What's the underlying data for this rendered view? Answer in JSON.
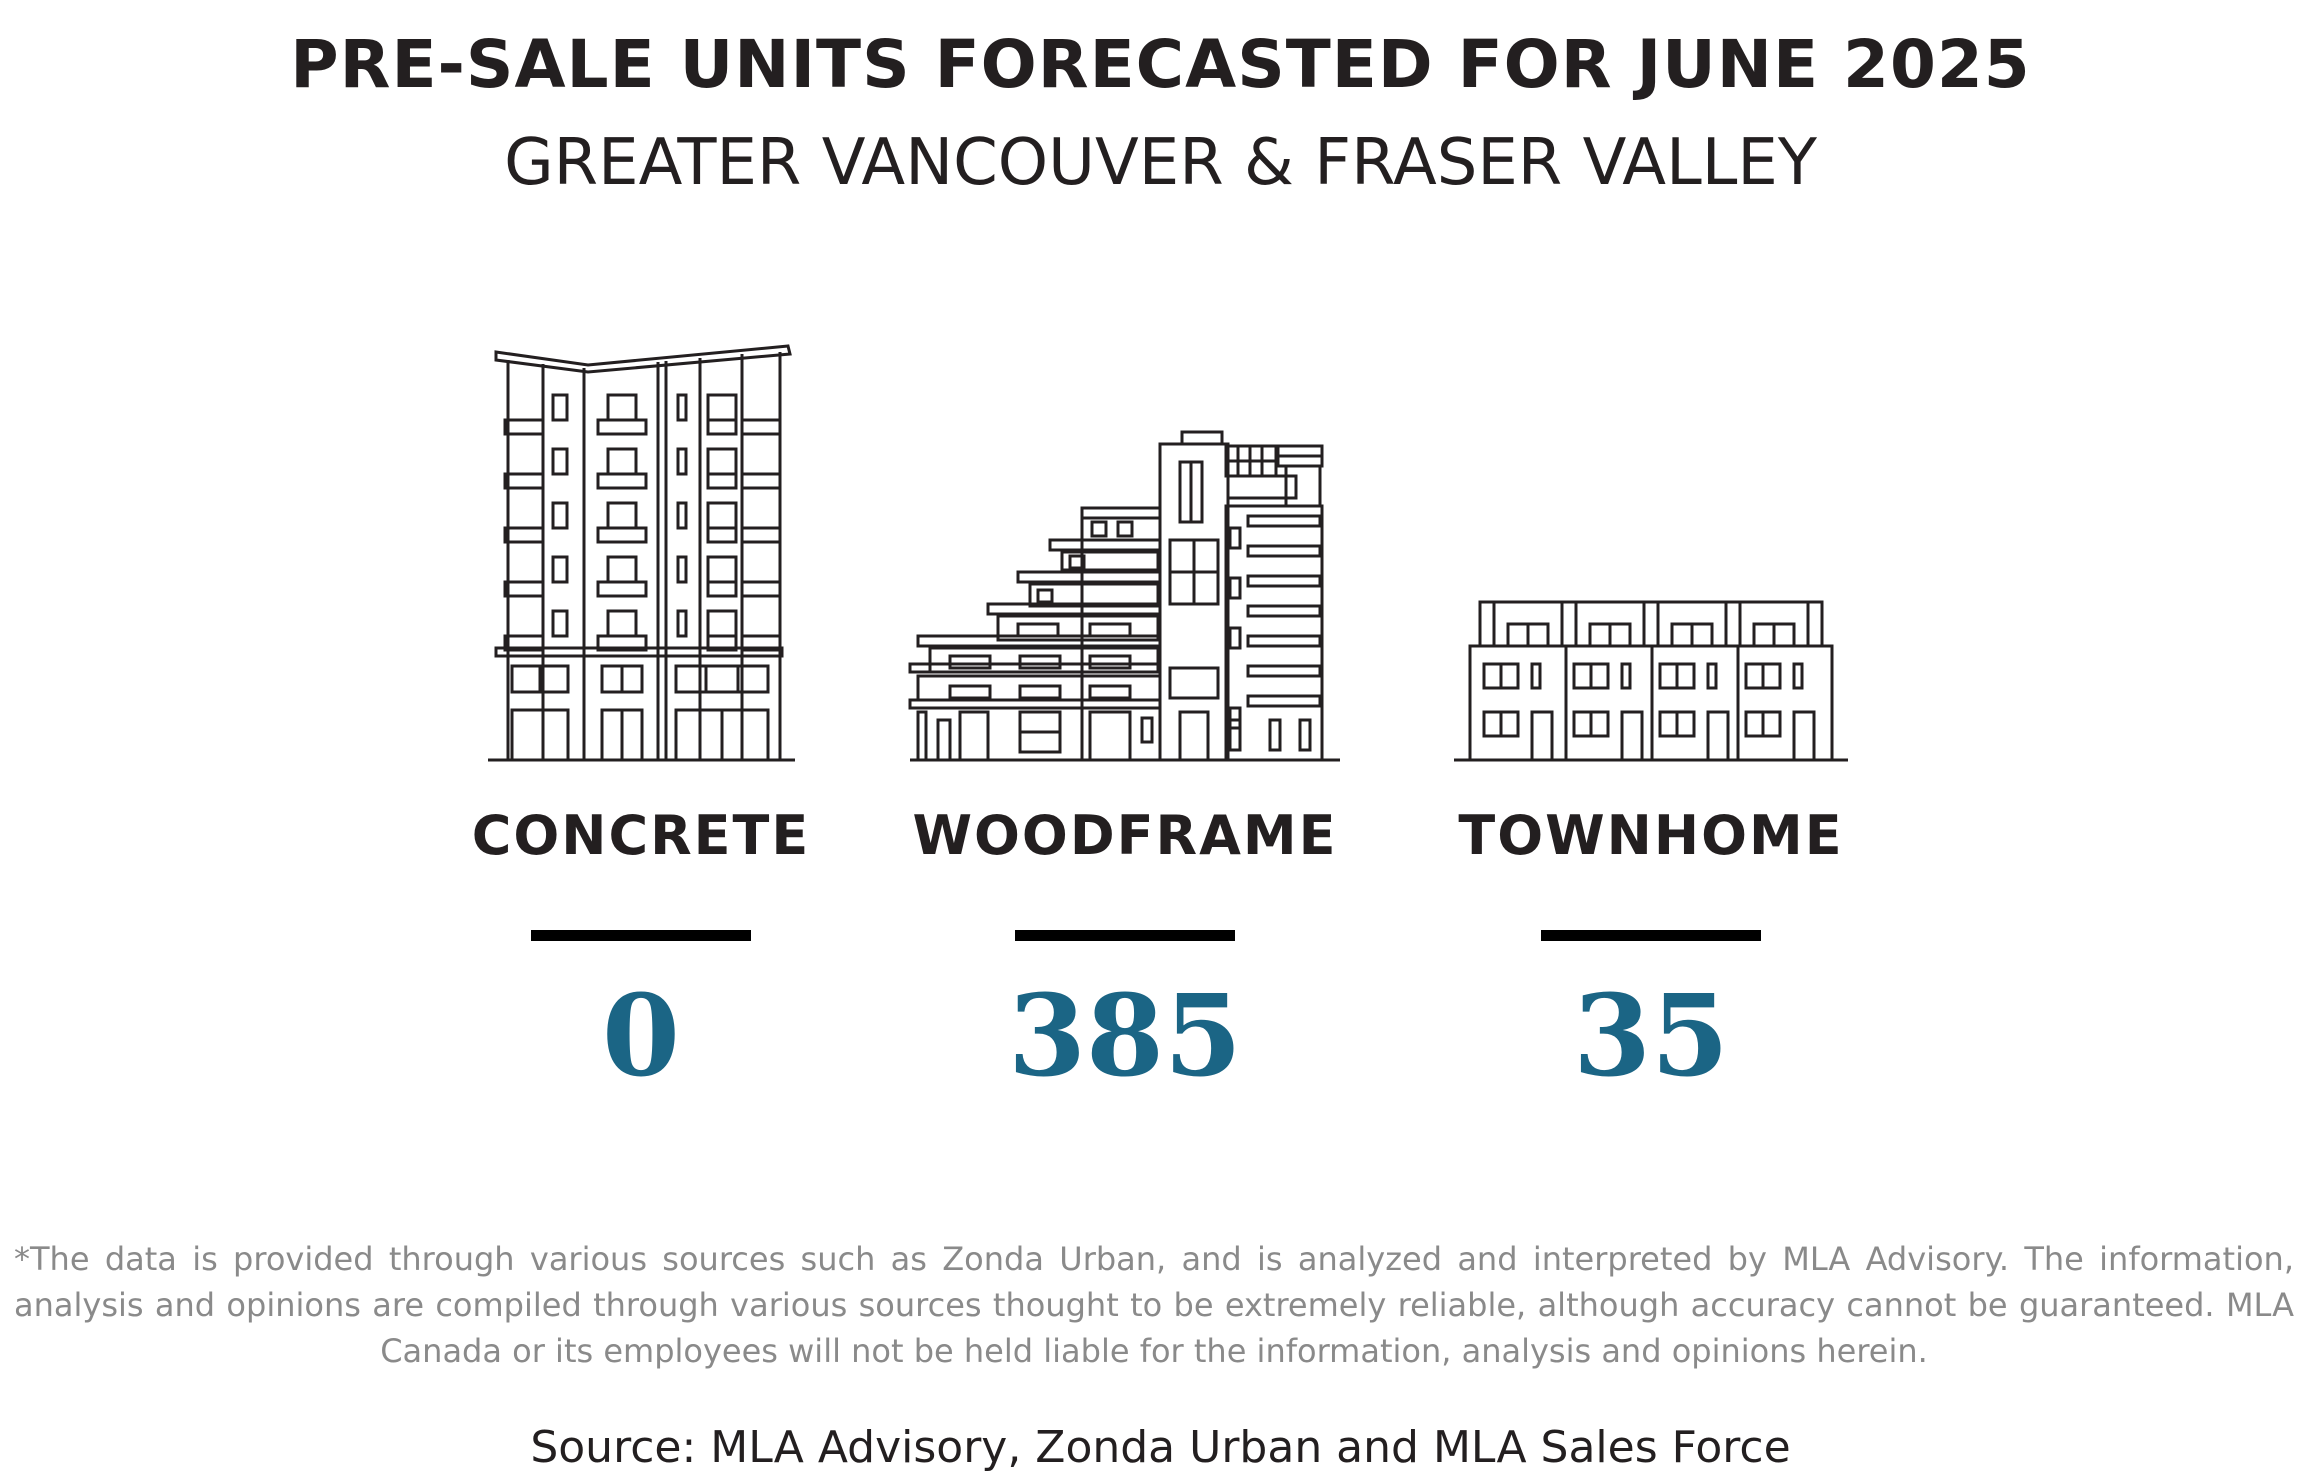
{
  "title": "PRE-SALE UNITS FORECASTED FOR JUNE 2025",
  "subtitle": "GREATER VANCOUVER & FRASER VALLEY",
  "chart_data": {
    "type": "table",
    "categories": [
      "CONCRETE",
      "WOODFRAME",
      "TOWNHOME"
    ],
    "values": [
      0,
      385,
      35
    ],
    "icons": [
      "concrete-building-icon",
      "woodframe-building-icon",
      "townhome-icon"
    ],
    "value_color": "#1b6585",
    "label_color": "#231f20",
    "divider_color": "#000000"
  },
  "disclaimer": "*The data is provided through various sources such as Zonda Urban, and is analyzed and interpreted by MLA Advisory. The information, analysis and opinions are compiled through various sources thought to be extremely reliable, although accuracy cannot be guaranteed. MLA Canada or its employees will not be held liable for the information, analysis and opinions herein.",
  "source": "Source: MLA Advisory, Zonda Urban and MLA Sales Force"
}
